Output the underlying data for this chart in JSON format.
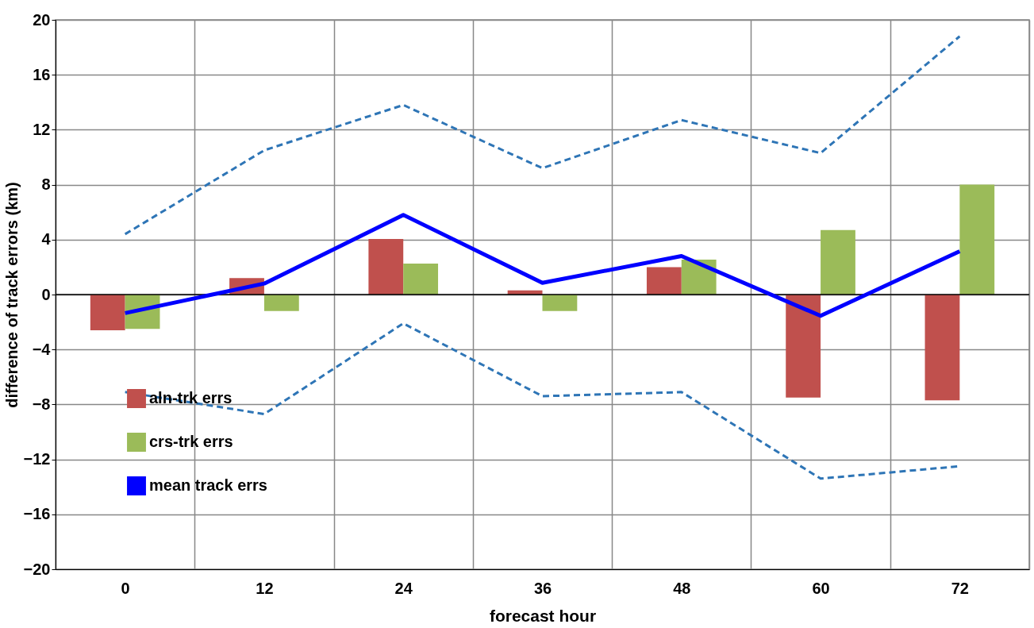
{
  "chart_data": {
    "type": "bar",
    "xlabel": "forecast hour",
    "ylabel": "difference of track errors (km)",
    "categories": [
      "0",
      "12",
      "24",
      "36",
      "48",
      "60",
      "72"
    ],
    "series": [
      {
        "name": "aln-trk errs",
        "color": "#c0504d",
        "values": [
          -2.6,
          1.2,
          4.05,
          0.3,
          2.0,
          -7.5,
          -7.7
        ]
      },
      {
        "name": "crs-trk errs",
        "color": "#9bbb59",
        "values": [
          -2.5,
          -1.2,
          2.25,
          -1.2,
          2.55,
          4.7,
          8.0
        ]
      },
      {
        "name": "mean track errs",
        "type": "line",
        "line_style": "solid",
        "color": "#0000ff",
        "values": [
          -1.35,
          0.8,
          5.8,
          0.85,
          2.8,
          -1.55,
          3.15
        ]
      },
      {
        "type": "line",
        "line_style": "dashed",
        "color": "#2e75b6",
        "values": [
          4.4,
          10.5,
          13.8,
          9.2,
          12.7,
          10.3,
          18.8
        ]
      },
      {
        "type": "line",
        "line_style": "dashed",
        "color": "#2e75b6",
        "values": [
          -7.1,
          -8.7,
          -2.1,
          -7.4,
          -7.1,
          -13.4,
          -12.5
        ]
      }
    ],
    "ylim": [
      -20,
      20
    ],
    "yticks": [
      -20,
      -16,
      -12,
      -8,
      -4,
      0,
      4,
      8,
      12,
      16,
      20
    ],
    "ref_lines": [
      {
        "axis": "y",
        "value": 0,
        "color": "#000000"
      }
    ],
    "grid": true,
    "legend": "bottom left"
  }
}
